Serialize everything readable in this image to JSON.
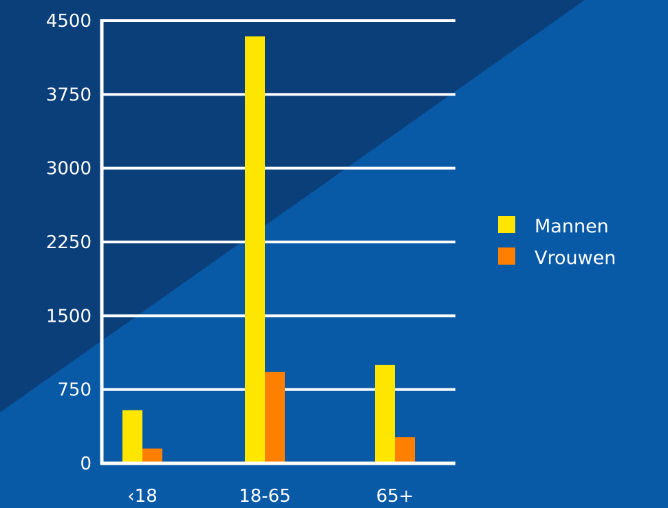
{
  "colors": {
    "background": "#0859a6",
    "background_dark": "#0a3f7a",
    "axis": "#ffffff",
    "gridline": "#ffffff",
    "text": "#ffffff"
  },
  "chart_data": {
    "type": "bar",
    "categories": [
      "‹18",
      "18-65",
      "65+"
    ],
    "series": [
      {
        "name": "Mannen",
        "color": "#ffe600",
        "values": [
          540,
          4340,
          1000
        ]
      },
      {
        "name": "Vrouwen",
        "color": "#ff7f00",
        "values": [
          150,
          930,
          265
        ]
      }
    ],
    "yticks": [
      "0",
      "750",
      "1500",
      "2250",
      "3000",
      "3750",
      "4500"
    ],
    "ylim": [
      0,
      4500
    ],
    "grid": true,
    "legend_position": "right"
  }
}
